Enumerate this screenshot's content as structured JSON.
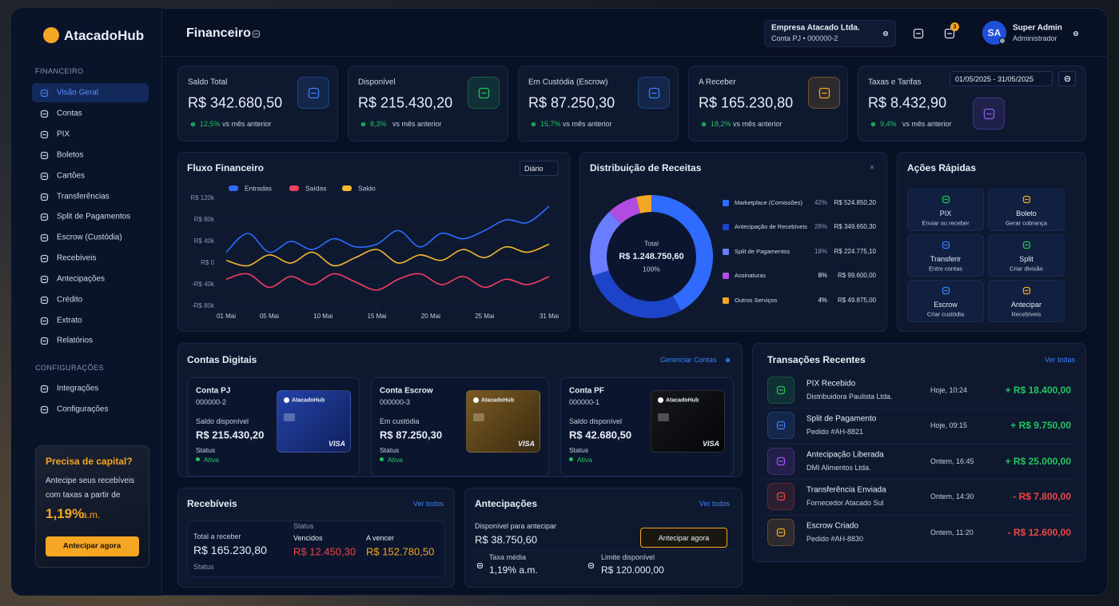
{
  "brand": "AtacadoHub",
  "sidebar": {
    "sections": [
      {
        "title": "FINANCEIRO",
        "items": [
          "Visão Geral",
          "Contas",
          "PIX",
          "Boletos",
          "Cartões",
          "Transferências",
          "Split de Pagamentos",
          "Escrow (Custódia)",
          "Recebíveis",
          "Antecipações",
          "Crédito",
          "Extrato",
          "Relatórios"
        ]
      },
      {
        "title": "CONFIGURAÇÕES",
        "items": [
          "Integrações",
          "Configurações"
        ]
      }
    ],
    "promo": {
      "title": "Precisa de capital?",
      "text": "Antecipe seus recebíveis com taxas a partir de",
      "rate": "1,19%",
      "unit": "a.m.",
      "button": "Antecipar agora"
    }
  },
  "header": {
    "title": "Financeiro",
    "company": "Empresa Atacado Ltda.",
    "account": "Conta PJ • 000000-2",
    "notifications": "3",
    "avatar": "SA",
    "user": "Super Admin",
    "role": "Administrador"
  },
  "date_range": "01/05/2025 - 31/05/2025",
  "kpis": [
    {
      "label": "Saldo Total",
      "value": "R$ 342.680,50",
      "change": "12,5%",
      "note": "vs mês anterior"
    },
    {
      "label": "Disponível",
      "value": "R$ 215.430,20",
      "change": "8,3%",
      "note": "vs mês anterior"
    },
    {
      "label": "Em Custódia (Escrow)",
      "value": "R$ 87.250,30",
      "change": "15,7%",
      "note": "vs mês anterior"
    },
    {
      "label": "A Receber",
      "value": "R$ 165.230,80",
      "change": "18,2%",
      "note": "vs mês anterior"
    },
    {
      "label": "Taxas e Tarifas",
      "value": "R$ 8.432,90",
      "change": "9,4%",
      "note": "vs mês anterior"
    }
  ],
  "chart_data": [
    {
      "type": "line",
      "title": "Fluxo Financeiro",
      "period": "Diário",
      "x": [
        1,
        3,
        5,
        7,
        9,
        11,
        13,
        15,
        17,
        19,
        21,
        23,
        25,
        27,
        29,
        31
      ],
      "xlim": [
        1,
        31
      ],
      "xticks": [
        {
          "value": 1,
          "label": "01 Mai"
        },
        {
          "value": 5,
          "label": "05 Mai"
        },
        {
          "value": 10,
          "label": "10 Mai"
        },
        {
          "value": 15,
          "label": "15 Mai"
        },
        {
          "value": 20,
          "label": "20 Mai"
        },
        {
          "value": 25,
          "label": "25 Mai"
        },
        {
          "value": 31,
          "label": "31 Mai"
        }
      ],
      "ylim": [
        -80000,
        120000
      ],
      "yticks": [
        {
          "value": 120000,
          "label": "R$ 120k"
        },
        {
          "value": 80000,
          "label": "R$ 80k"
        },
        {
          "value": 40000,
          "label": "R$ 40k"
        },
        {
          "value": 0,
          "label": "R$ 0"
        },
        {
          "value": -40000,
          "label": "-R$ 40k"
        },
        {
          "value": -80000,
          "label": "-R$ 80k"
        }
      ],
      "series": [
        {
          "name": "Entradas",
          "color": "#2f6bff",
          "values": [
            20000,
            55000,
            20000,
            40000,
            25000,
            45000,
            30000,
            35000,
            60000,
            30000,
            55000,
            45000,
            60000,
            80000,
            75000,
            105000
          ]
        },
        {
          "name": "Saídas",
          "color": "#f43f5e",
          "values": [
            -30000,
            -20000,
            -45000,
            -25000,
            -40000,
            -20000,
            -35000,
            -50000,
            -30000,
            -20000,
            -40000,
            -25000,
            -45000,
            -30000,
            -40000,
            -25000
          ]
        },
        {
          "name": "Saldo",
          "color": "#f5b82e",
          "values": [
            5000,
            -5000,
            15000,
            0,
            20000,
            -5000,
            10000,
            25000,
            0,
            15000,
            5000,
            25000,
            10000,
            30000,
            20000,
            35000
          ]
        }
      ]
    },
    {
      "type": "donut",
      "title": "Distribuição de Receitas",
      "categories": [
        "Marketplace (Comissões)",
        "Antecipação de Recebíveis",
        "Split de Pagamentos",
        "Assinaturas",
        "Outros Serviços"
      ],
      "values": [
        42,
        28,
        18,
        8,
        4
      ],
      "value_labels": [
        "42%",
        "28%",
        "18%",
        "8%",
        "4%"
      ],
      "amounts": [
        "R$ 524.850,20",
        "R$ 349.650,30",
        "R$ 224.775,10",
        "R$ 99.600,00",
        "R$ 49.875,00"
      ],
      "colors": [
        "#2f6bff",
        "#1d44c8",
        "#6a7dff",
        "#b04de0",
        "#f5a623"
      ],
      "center_label": "Total",
      "center_value": "R$ 1.248.750,60",
      "center_pct": "100%"
    }
  ],
  "quick_actions": {
    "title": "Ações Rápidas",
    "items": [
      {
        "label": "PIX",
        "sub": "Enviar ou receber"
      },
      {
        "label": "Boleto",
        "sub": "Gerar cobrança"
      },
      {
        "label": "Transferir",
        "sub": "Entre contas"
      },
      {
        "label": "Split",
        "sub": "Criar divisão"
      },
      {
        "label": "Escrow",
        "sub": "Criar custódia"
      },
      {
        "label": "Antecipar",
        "sub": "Recebíveis"
      }
    ]
  },
  "accounts": {
    "title": "Contas Digitais",
    "link": "Gerenciar Contas",
    "cards": [
      {
        "name": "Conta PJ",
        "number": "000000-2",
        "balance_label": "Saldo disponível",
        "balance": "R$ 215.430,20",
        "status_label": "Status",
        "status": "Ativa",
        "card_brand": "AtacadoHub",
        "network": "VISA"
      },
      {
        "name": "Conta Escrow",
        "number": "000000-3",
        "balance_label": "Em custódia",
        "balance": "R$ 87.250,30",
        "status_label": "Status",
        "status": "Ativa",
        "card_brand": "AtacadoHub",
        "network": "VISA"
      },
      {
        "name": "Conta PF",
        "number": "000000-1",
        "balance_label": "Saldo disponível",
        "balance": "R$ 42.680,50",
        "status_label": "Status",
        "status": "Ativa",
        "card_brand": "AtacadoHub",
        "network": "VISA"
      }
    ]
  },
  "transactions": {
    "title": "Transações Recentes",
    "link": "Ver todas",
    "rows": [
      {
        "title": "PIX Recebido",
        "sub": "Distribuidora Paulista Ltda.",
        "time": "Hoje, 10:24",
        "amount": "+ R$ 18.400,00",
        "color": "#22c55e"
      },
      {
        "title": "Split de Pagamento",
        "sub": "Pedido #AH-8821",
        "time": "Hoje, 09:15",
        "amount": "+ R$ 9.750,00",
        "color": "#22c55e"
      },
      {
        "title": "Antecipação Liberada",
        "sub": "DMI Alimentos Ltda.",
        "time": "Ontem, 16:45",
        "amount": "+ R$ 25.000,00",
        "color": "#22c55e"
      },
      {
        "title": "Transferência Enviada",
        "sub": "Fornecedor Atacado Sul",
        "time": "Ontem, 14:30",
        "amount": "- R$ 7.800,00",
        "color": "#ef4444"
      },
      {
        "title": "Escrow Criado",
        "sub": "Pedido #AH-8830",
        "time": "Ontem, 11:20",
        "amount": "- R$ 12.600,00",
        "color": "#ef4444"
      }
    ]
  },
  "receivables": {
    "title": "Recebíveis",
    "link": "Ver todos",
    "total_label": "Total a receber",
    "total": "R$ 165.230,80",
    "status_label": "Status",
    "overdue_label": "Vencidos",
    "overdue": "R$ 12.450,30",
    "upcoming_label": "A vencer",
    "upcoming": "R$ 152.780,50",
    "footer": "Status"
  },
  "advances": {
    "title": "Antecipações",
    "link": "Ver todos",
    "available_label": "Disponível para antecipar",
    "available": "R$ 38.750,60",
    "button": "Antecipar agora",
    "rate_label": "Taxa média",
    "rate": "1,19% a.m.",
    "limit_label": "Limite disponível",
    "limit": "R$ 120.000,00"
  }
}
